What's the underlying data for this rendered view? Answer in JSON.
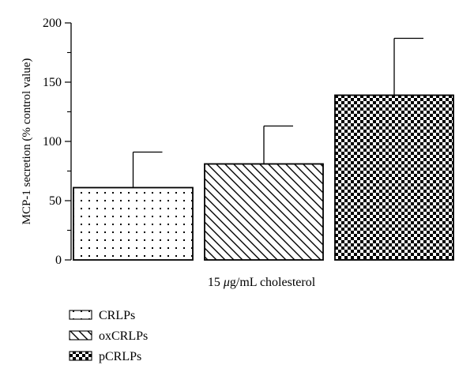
{
  "chart_data": {
    "type": "bar",
    "categories": [
      "CRLPs",
      "oxCRLPs",
      "pCRLPs"
    ],
    "values": [
      61,
      81,
      139
    ],
    "errors": [
      30,
      32,
      48
    ],
    "title": "",
    "xlabel_prefix": "15 ",
    "xlabel_mu": "μ",
    "xlabel_suffix": "g/mL cholesterol",
    "ylabel": "MCP-1 secretion (% control value)",
    "ylim": [
      0,
      200
    ],
    "yticks": [
      "0",
      "50",
      "100",
      "150",
      "200"
    ],
    "patterns": [
      "dots",
      "diagonal-hatch",
      "checkerboard"
    ],
    "legend_position": "bottom-left",
    "grid": false
  }
}
